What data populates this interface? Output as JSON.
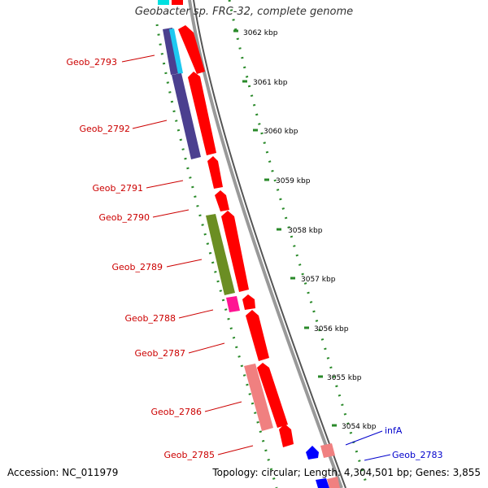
{
  "title": "Geobacter sp. FRC-32, complete genome",
  "accession": "Accession: NC_011979",
  "summary": "Topology: circular; Length: 4,304,501 bp; Genes: 3,855",
  "colors": {
    "backbone": "#888888",
    "tick": "#2a8a2a",
    "gene_red": "#ff0000",
    "gene_pink": "#f08080",
    "gene_navy": "#4b3f8f",
    "gene_cyan": "#1ec8f0",
    "gene_olive": "#6b8e23",
    "gene_magenta": "#ff1493",
    "gene_blue": "#0000ff",
    "label_red": "#cc0000",
    "label_blue": "#0000cc"
  },
  "scale_labels": [
    "3062 kbp",
    "3061 kbp",
    "3060 kbp",
    "3059 kbp",
    "3058 kbp",
    "3057 kbp",
    "3056 kbp",
    "3055 kbp",
    "3054 kbp"
  ],
  "gene_labels": [
    {
      "text": "Geob_2793",
      "side": "left"
    },
    {
      "text": "Geob_2792",
      "side": "left"
    },
    {
      "text": "Geob_2791",
      "side": "left"
    },
    {
      "text": "Geob_2790",
      "side": "left"
    },
    {
      "text": "Geob_2789",
      "side": "left"
    },
    {
      "text": "Geob_2788",
      "side": "left"
    },
    {
      "text": "Geob_2787",
      "side": "left"
    },
    {
      "text": "Geob_2786",
      "side": "left"
    },
    {
      "text": "Geob_2785",
      "side": "left"
    },
    {
      "text": "infA",
      "side": "right"
    },
    {
      "text": "Geob_2783",
      "side": "right"
    }
  ]
}
